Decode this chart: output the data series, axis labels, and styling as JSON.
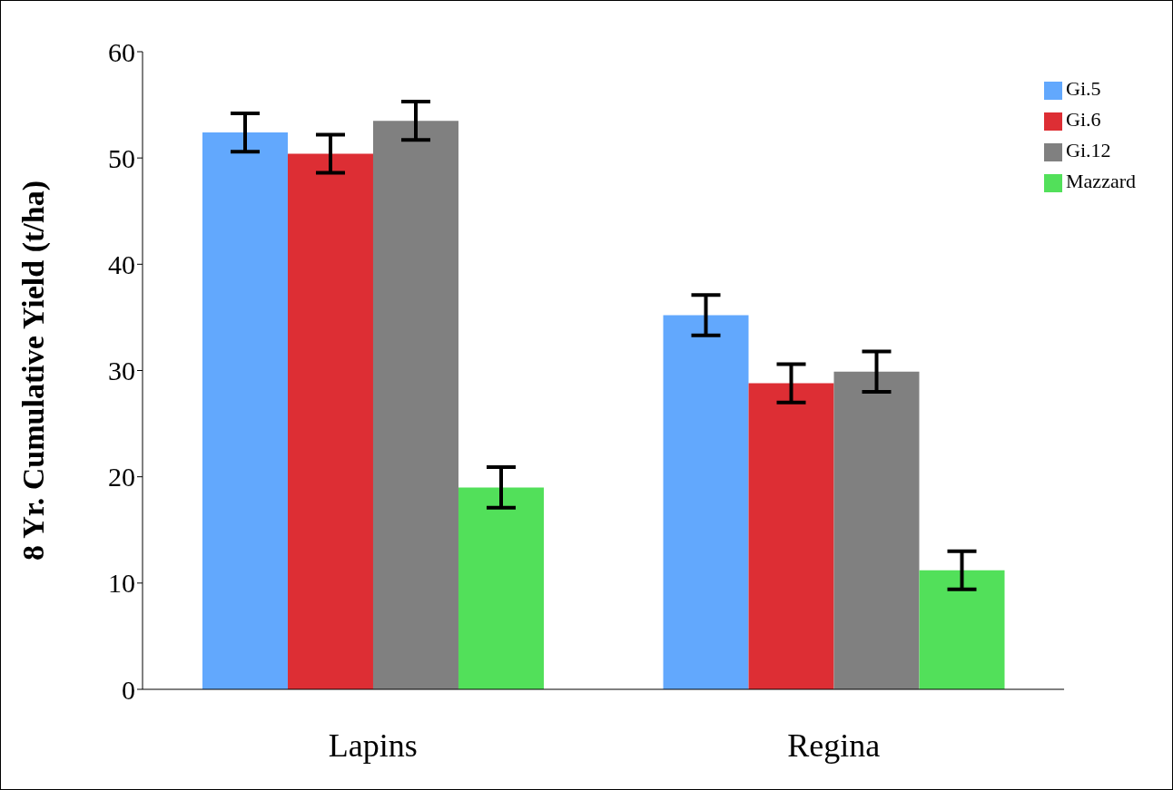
{
  "chart_data": {
    "type": "bar",
    "ylabel": "8 Yr. Cumulative Yield (t/ha)",
    "categories": [
      "Lapins",
      "Regina"
    ],
    "series": [
      {
        "name": "Gi.5",
        "color": "#62a8fd",
        "values": [
          52.4,
          35.2
        ],
        "errors": [
          1.8,
          1.9
        ]
      },
      {
        "name": "Gi.6",
        "color": "#dd2e34",
        "values": [
          50.4,
          28.8
        ],
        "errors": [
          1.8,
          1.8
        ]
      },
      {
        "name": "Gi.12",
        "color": "#808080",
        "values": [
          53.5,
          29.9
        ],
        "errors": [
          1.8,
          1.9
        ]
      },
      {
        "name": "Mazzard",
        "color": "#52e05a",
        "values": [
          19.0,
          11.2
        ],
        "errors": [
          1.9,
          1.8
        ]
      }
    ],
    "ylim": [
      0,
      60
    ],
    "yticks": [
      0,
      10,
      20,
      30,
      40,
      50,
      60
    ],
    "legend": "top right"
  }
}
